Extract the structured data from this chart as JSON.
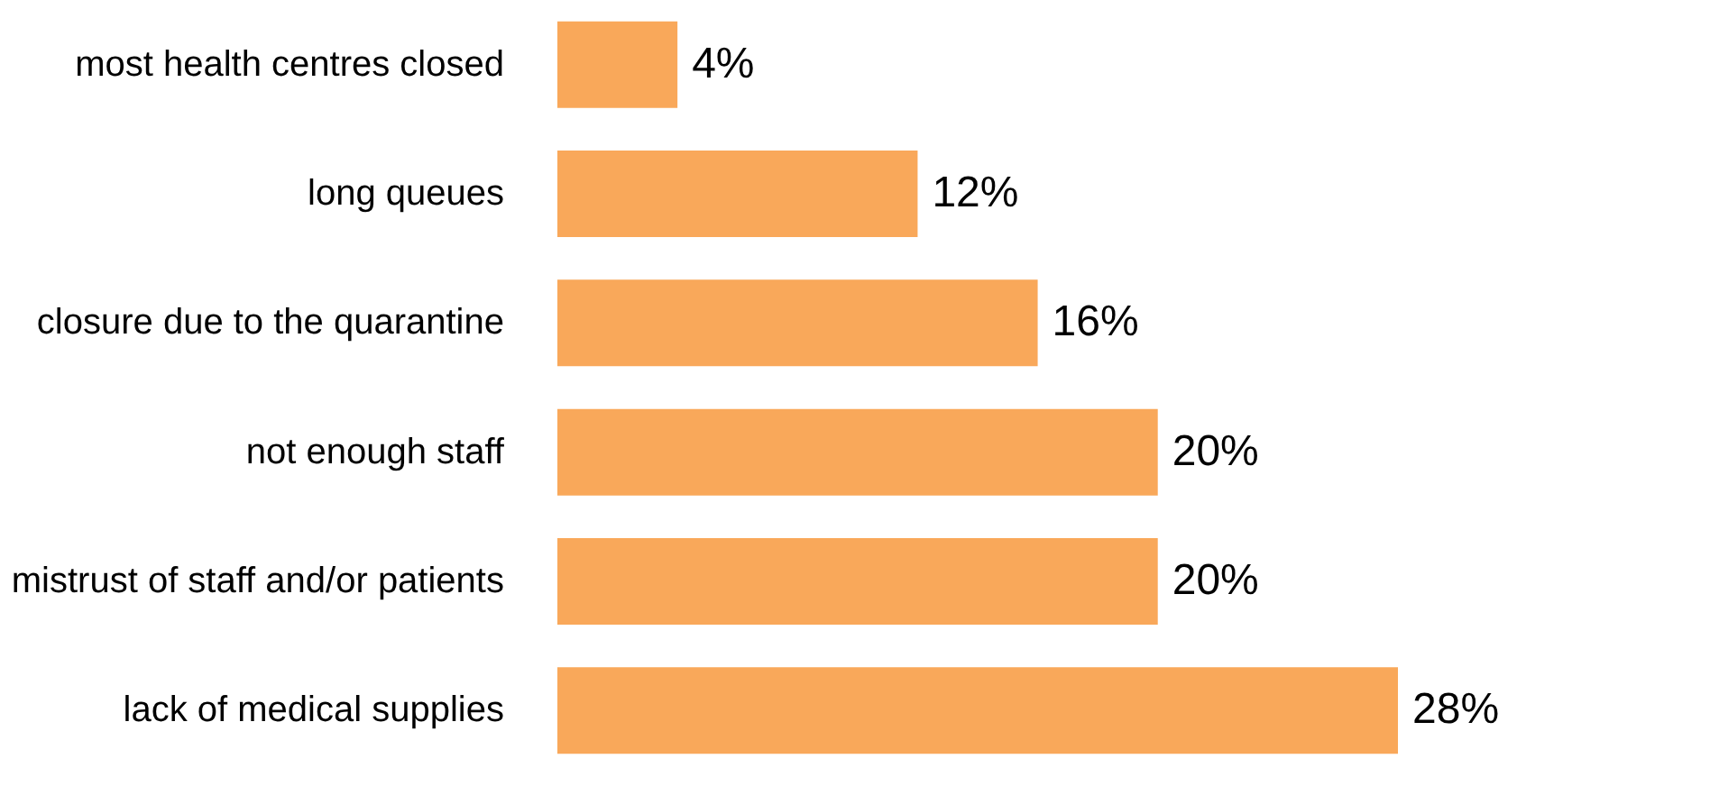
{
  "chart_data": {
    "type": "bar",
    "orientation": "horizontal",
    "categories": [
      "most health centres closed",
      "long queues",
      "closure due to the quarantine",
      "not enough staff",
      "mistrust of staff and/or patients",
      "lack of medical supplies"
    ],
    "values": [
      4,
      12,
      16,
      20,
      20,
      28
    ],
    "value_labels": [
      "4%",
      "12%",
      "16%",
      "20%",
      "20%",
      "28%"
    ],
    "color": "#f9a85a"
  }
}
